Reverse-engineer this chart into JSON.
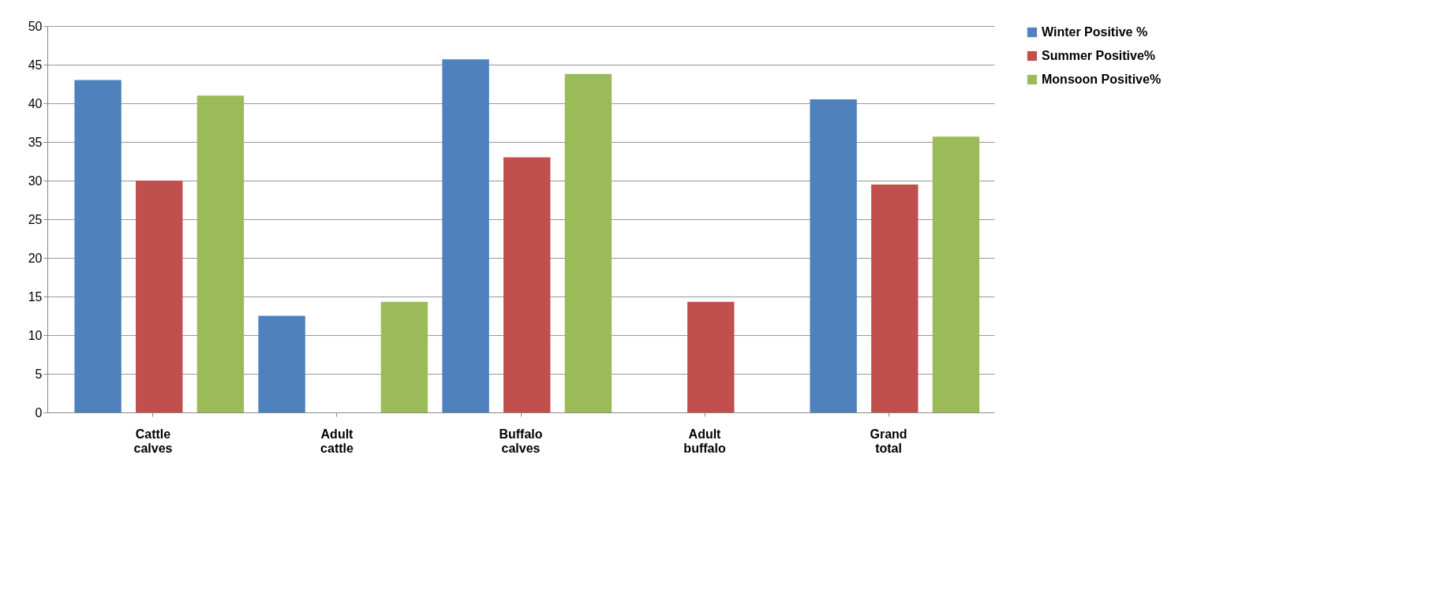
{
  "chart_data": {
    "type": "bar",
    "categories": [
      "Cattle calves",
      "Adult cattle",
      "Buffalo calves",
      "Adult buffalo",
      "Grand total"
    ],
    "series": [
      {
        "name": "Winter Positive %",
        "color": "#4f81bd",
        "values": [
          43,
          12.5,
          45.7,
          null,
          40.5
        ]
      },
      {
        "name": "Summer Positive%",
        "color": "#c0504d",
        "values": [
          30,
          null,
          33,
          14.3,
          29.5
        ]
      },
      {
        "name": "Monsoon Positive%",
        "color": "#9bbb59",
        "values": [
          41,
          14.3,
          43.8,
          null,
          35.7
        ]
      }
    ],
    "ylim": [
      0,
      50
    ],
    "yticks": [
      0,
      5,
      10,
      15,
      20,
      25,
      30,
      35,
      40,
      45,
      50
    ],
    "grid": "y",
    "legend": "right"
  }
}
